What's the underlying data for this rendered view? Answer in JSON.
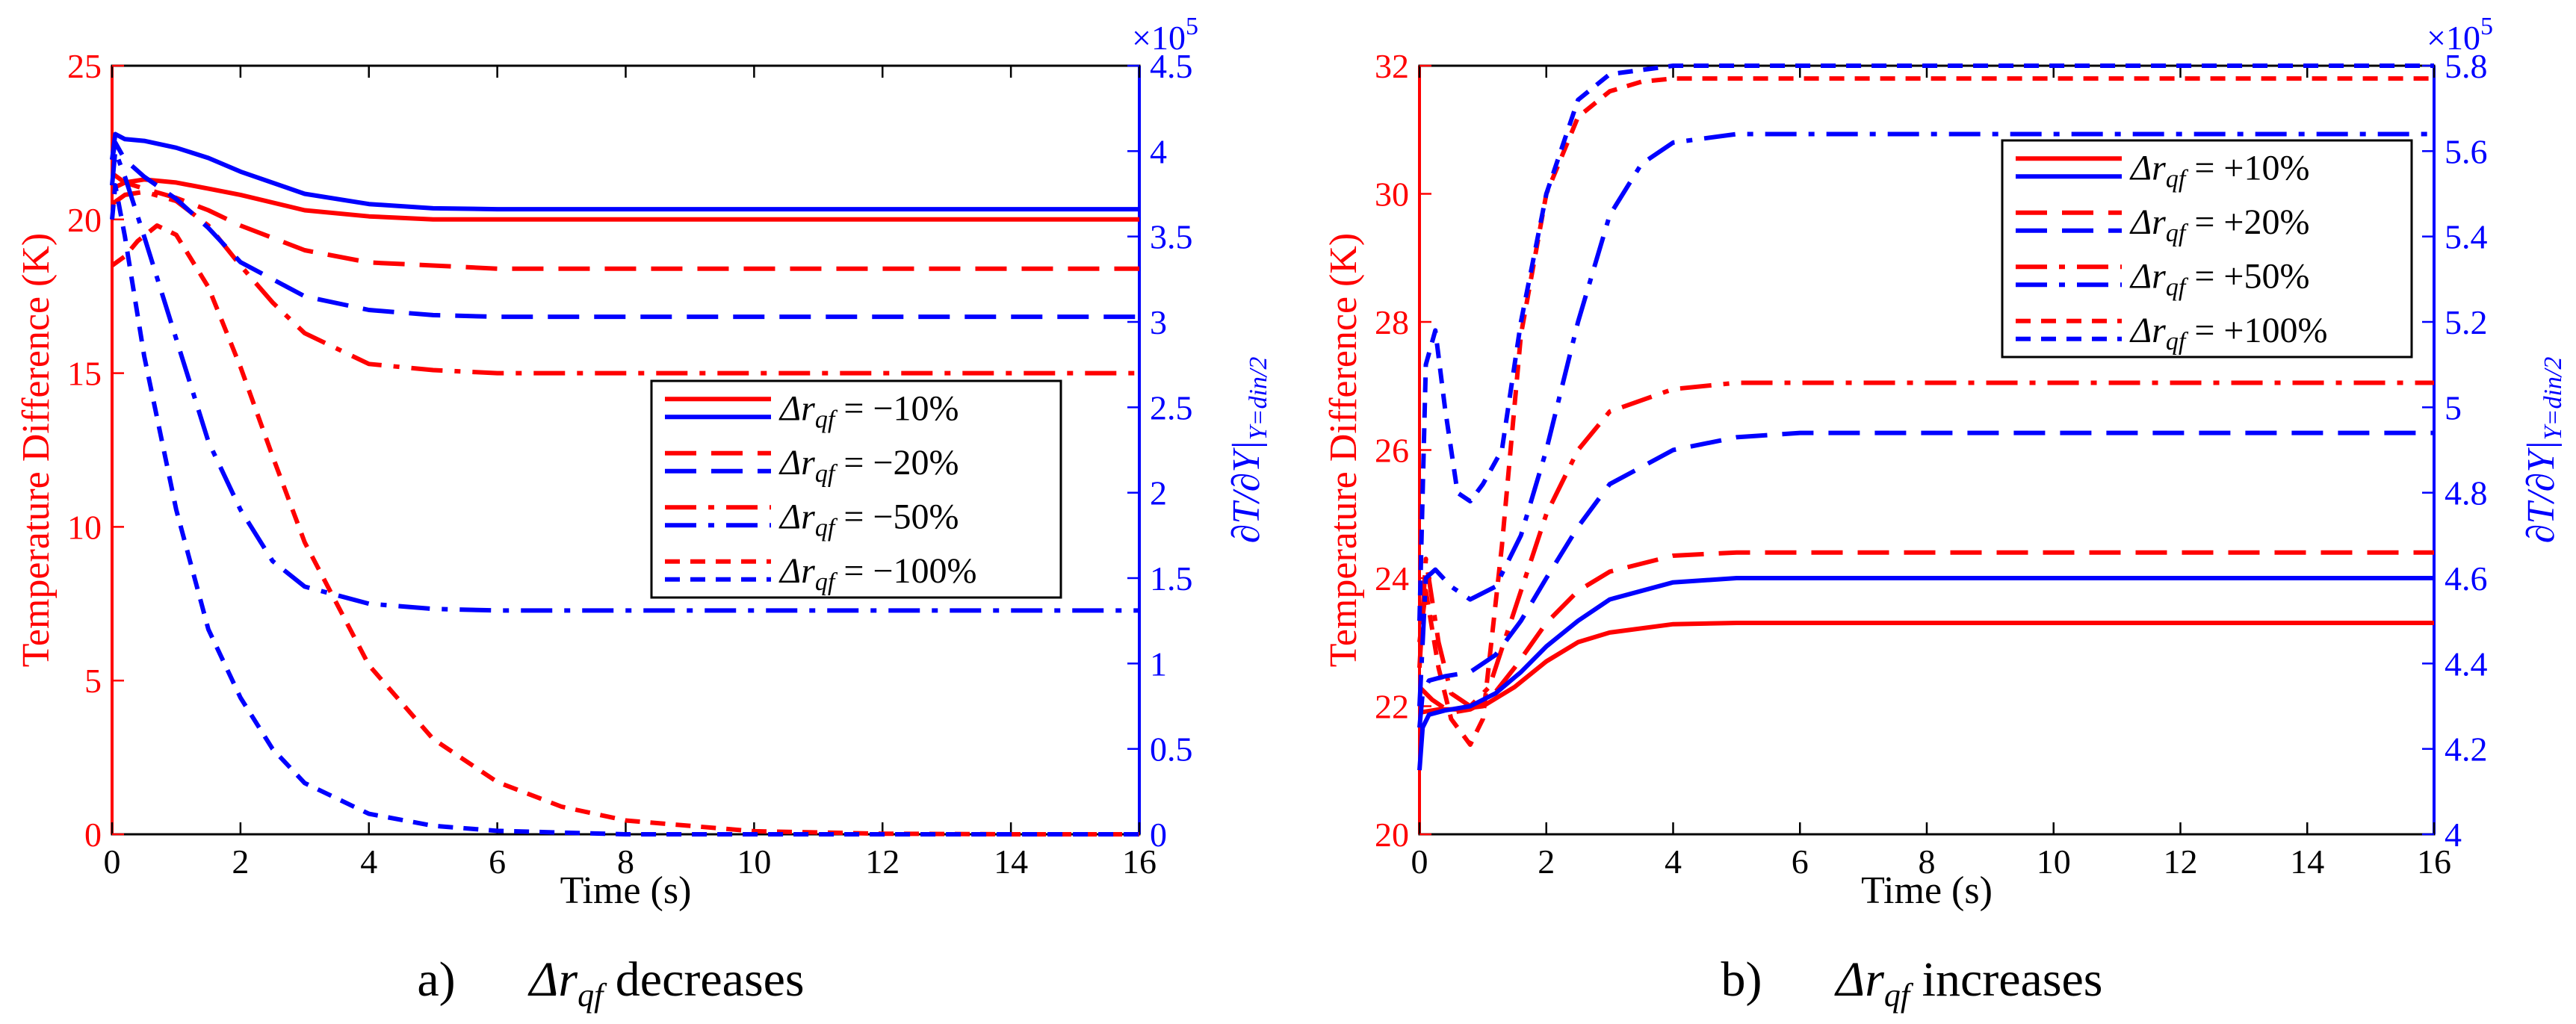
{
  "colors": {
    "red": "#ff0000",
    "blue": "#0000ff",
    "axis": "#000000"
  },
  "chart_data": [
    {
      "id": "a",
      "type": "line",
      "caption": {
        "letter": "a)",
        "prefix": "Δr",
        "subscript": "qf",
        "word": "decreases"
      },
      "xlabel": "Time (s)",
      "ylabel_left": "Temperature Difference (K)",
      "ylabel_right": "∂T/∂Y|",
      "ylabel_right_sub": "Y=din/2",
      "exponent": "×10",
      "exponent_power": "5",
      "xlim": [
        0,
        16
      ],
      "ylim_left": [
        0,
        25
      ],
      "ylim_right": [
        0,
        4.5
      ],
      "x_ticks": [
        "0",
        "2",
        "4",
        "6",
        "8",
        "10",
        "12",
        "14",
        "16"
      ],
      "y_left_ticks": [
        "0",
        "5",
        "10",
        "15",
        "20",
        "25"
      ],
      "y_right_ticks": [
        "0",
        "0.5",
        "1",
        "1.5",
        "2",
        "2.5",
        "3",
        "3.5",
        "4",
        "4.5"
      ],
      "legend": {
        "position": "center-right",
        "entries": [
          {
            "label": "Δr",
            "sub": "qf",
            "value": " = −10%",
            "dash": "solid"
          },
          {
            "label": "Δr",
            "sub": "qf",
            "value": " = −20%",
            "dash": "dashed"
          },
          {
            "label": "Δr",
            "sub": "qf",
            "value": " = −50%",
            "dash": "dashdot"
          },
          {
            "label": "Δr",
            "sub": "qf",
            "value": " = −100%",
            "dash": "shortdash"
          }
        ]
      },
      "series": [
        {
          "name": "ΔT −10%",
          "axis": "left",
          "color": "red",
          "dash": "solid",
          "x": [
            0,
            0.2,
            0.5,
            1,
            1.5,
            2,
            3,
            4,
            5,
            6,
            8,
            10,
            12,
            14,
            16
          ],
          "y": [
            21.0,
            21.2,
            21.3,
            21.2,
            21.0,
            20.8,
            20.3,
            20.1,
            20.0,
            20.0,
            20.0,
            20.0,
            20.0,
            20.0,
            20.0
          ]
        },
        {
          "name": "ΔT −20%",
          "axis": "left",
          "color": "red",
          "dash": "dashed",
          "x": [
            0,
            0.2,
            0.5,
            1,
            1.5,
            2,
            3,
            4,
            5,
            6,
            8,
            10,
            12,
            14,
            16
          ],
          "y": [
            21.5,
            21.2,
            21.0,
            20.7,
            20.3,
            19.8,
            19.0,
            18.6,
            18.5,
            18.4,
            18.4,
            18.4,
            18.4,
            18.4,
            18.4
          ]
        },
        {
          "name": "ΔT −50%",
          "axis": "left",
          "color": "red",
          "dash": "dashdot",
          "x": [
            0,
            0.2,
            0.5,
            1,
            1.5,
            2,
            2.5,
            3,
            4,
            5,
            6,
            8,
            10,
            12,
            14,
            16
          ],
          "y": [
            20.5,
            20.8,
            20.9,
            20.6,
            19.8,
            18.5,
            17.3,
            16.3,
            15.3,
            15.1,
            15.0,
            15.0,
            15.0,
            15.0,
            15.0,
            15.0
          ]
        },
        {
          "name": "ΔT −100%",
          "axis": "left",
          "color": "red",
          "dash": "shortdash",
          "x": [
            0,
            0.2,
            0.4,
            0.7,
            1,
            1.5,
            2,
            2.5,
            3,
            4,
            5,
            6,
            7,
            8,
            10,
            12,
            14,
            16
          ],
          "y": [
            18.5,
            18.8,
            19.3,
            19.8,
            19.5,
            17.8,
            15.2,
            12.3,
            9.5,
            5.5,
            3.1,
            1.7,
            0.9,
            0.45,
            0.1,
            0.02,
            0.0,
            0.0
          ]
        },
        {
          "name": "∂T/∂Y −10%",
          "axis": "right",
          "color": "blue",
          "dash": "solid",
          "x": [
            0,
            0.05,
            0.2,
            0.5,
            1,
            1.5,
            2,
            3,
            4,
            5,
            6,
            8,
            10,
            12,
            14,
            16
          ],
          "y": [
            3.95,
            4.1,
            4.07,
            4.06,
            4.02,
            3.96,
            3.88,
            3.75,
            3.69,
            3.665,
            3.66,
            3.66,
            3.66,
            3.66,
            3.66,
            3.66
          ]
        },
        {
          "name": "∂T/∂Y −20%",
          "axis": "right",
          "color": "blue",
          "dash": "dashed",
          "x": [
            0,
            0.05,
            0.2,
            0.5,
            1,
            1.5,
            2,
            3,
            4,
            5,
            6,
            8,
            10,
            12,
            14,
            16
          ],
          "y": [
            3.95,
            4.05,
            3.95,
            3.85,
            3.72,
            3.55,
            3.35,
            3.15,
            3.07,
            3.04,
            3.03,
            3.03,
            3.03,
            3.03,
            3.03,
            3.03
          ]
        },
        {
          "name": "∂T/∂Y −50%",
          "axis": "right",
          "color": "blue",
          "dash": "dashdot",
          "x": [
            0,
            0.05,
            0.2,
            0.5,
            1,
            1.5,
            2,
            2.5,
            3,
            4,
            5,
            6,
            8,
            10,
            12,
            14,
            16
          ],
          "y": [
            3.8,
            4.0,
            3.85,
            3.5,
            2.9,
            2.3,
            1.9,
            1.6,
            1.45,
            1.35,
            1.32,
            1.31,
            1.31,
            1.31,
            1.31,
            1.31,
            1.31
          ]
        },
        {
          "name": "∂T/∂Y −100%",
          "axis": "right",
          "color": "blue",
          "dash": "shortdash",
          "x": [
            0,
            0.05,
            0.2,
            0.5,
            1,
            1.5,
            2,
            2.5,
            3,
            4,
            5,
            6,
            7,
            8,
            10,
            12,
            14,
            16
          ],
          "y": [
            3.6,
            3.8,
            3.5,
            2.8,
            1.9,
            1.2,
            0.8,
            0.5,
            0.3,
            0.12,
            0.05,
            0.02,
            0.01,
            0.0,
            0.0,
            0.0,
            0.0,
            0.0
          ]
        }
      ]
    },
    {
      "id": "b",
      "type": "line",
      "caption": {
        "letter": "b)",
        "prefix": "Δr",
        "subscript": "qf",
        "word": "increases"
      },
      "xlabel": "Time (s)",
      "ylabel_left": "Temperature Difference (K)",
      "ylabel_right": "∂T/∂Y|",
      "ylabel_right_sub": "Y=din/2",
      "exponent": "×10",
      "exponent_power": "5",
      "xlim": [
        0,
        16
      ],
      "ylim_left": [
        20,
        32
      ],
      "ylim_right": [
        4,
        5.8
      ],
      "x_ticks": [
        "0",
        "2",
        "4",
        "6",
        "8",
        "10",
        "12",
        "14",
        "16"
      ],
      "y_left_ticks": [
        "20",
        "22",
        "24",
        "26",
        "28",
        "30",
        "32"
      ],
      "y_right_ticks": [
        "4",
        "4.2",
        "4.4",
        "4.6",
        "4.8",
        "5",
        "5.2",
        "5.4",
        "5.6",
        "5.8"
      ],
      "legend": {
        "position": "top-right",
        "entries": [
          {
            "label": "Δr",
            "sub": "qf",
            "value": " = +10%",
            "dash": "solid"
          },
          {
            "label": "Δr",
            "sub": "qf",
            "value": " = +20%",
            "dash": "dashed"
          },
          {
            "label": "Δr",
            "sub": "qf",
            "value": " = +50%",
            "dash": "dashdot"
          },
          {
            "label": "Δr",
            "sub": "qf",
            "value": " = +100%",
            "dash": "shortdash"
          }
        ]
      },
      "series": [
        {
          "name": "ΔT +10%",
          "axis": "left",
          "color": "red",
          "dash": "solid",
          "x": [
            0,
            0.3,
            0.6,
            1,
            1.5,
            2,
            2.5,
            3,
            4,
            5,
            6,
            8,
            10,
            12,
            14,
            16
          ],
          "y": [
            21.9,
            21.95,
            21.95,
            22.0,
            22.3,
            22.7,
            23.0,
            23.15,
            23.28,
            23.3,
            23.3,
            23.3,
            23.3,
            23.3,
            23.3,
            23.3
          ]
        },
        {
          "name": "ΔT +20%",
          "axis": "left",
          "color": "red",
          "dash": "dashed",
          "x": [
            0,
            0.2,
            0.5,
            0.8,
            1.1,
            1.5,
            2,
            2.5,
            3,
            4,
            5,
            6,
            8,
            10,
            12,
            14,
            16
          ],
          "y": [
            22.3,
            22.1,
            21.9,
            21.95,
            22.1,
            22.6,
            23.3,
            23.8,
            24.1,
            24.35,
            24.4,
            24.4,
            24.4,
            24.4,
            24.4,
            24.4,
            24.4
          ]
        },
        {
          "name": "ΔT +50%",
          "axis": "left",
          "color": "red",
          "dash": "dashdot",
          "x": [
            0,
            0.1,
            0.3,
            0.5,
            0.8,
            1.1,
            1.5,
            2,
            2.5,
            3,
            4,
            5,
            6,
            8,
            10,
            12,
            14,
            16
          ],
          "y": [
            22.6,
            24.3,
            23.0,
            22.2,
            22.0,
            22.3,
            23.5,
            25.0,
            26.0,
            26.6,
            26.95,
            27.05,
            27.05,
            27.05,
            27.05,
            27.05,
            27.05,
            27.05
          ]
        },
        {
          "name": "ΔT +100%",
          "axis": "left",
          "color": "red",
          "dash": "shortdash",
          "x": [
            0,
            0.1,
            0.3,
            0.5,
            0.8,
            1.0,
            1.3,
            1.6,
            2,
            2.5,
            3,
            3.5,
            4,
            5,
            6,
            8,
            10,
            12,
            14,
            16
          ],
          "y": [
            23.0,
            23.8,
            22.6,
            21.8,
            21.4,
            21.8,
            24.5,
            27.8,
            30.0,
            31.2,
            31.6,
            31.75,
            31.8,
            31.8,
            31.8,
            31.8,
            31.8,
            31.8,
            31.8,
            31.8
          ]
        },
        {
          "name": "∂T/∂Y +10%",
          "axis": "right",
          "color": "blue",
          "dash": "solid",
          "x": [
            0,
            0.05,
            0.15,
            0.4,
            0.8,
            1.2,
            1.6,
            2,
            2.5,
            3,
            4,
            5,
            6,
            8,
            10,
            12,
            14,
            16
          ],
          "y": [
            4.15,
            4.25,
            4.28,
            4.29,
            4.3,
            4.33,
            4.38,
            4.44,
            4.5,
            4.55,
            4.59,
            4.6,
            4.6,
            4.6,
            4.6,
            4.6,
            4.6,
            4.6
          ]
        },
        {
          "name": "∂T/∂Y +20%",
          "axis": "right",
          "color": "blue",
          "dash": "dashed",
          "x": [
            0,
            0.05,
            0.15,
            0.4,
            0.8,
            1.2,
            1.6,
            2,
            2.5,
            3,
            4,
            5,
            6,
            8,
            10,
            12,
            14,
            16
          ],
          "y": [
            4.25,
            4.33,
            4.36,
            4.37,
            4.38,
            4.42,
            4.5,
            4.6,
            4.72,
            4.82,
            4.9,
            4.93,
            4.94,
            4.94,
            4.94,
            4.94,
            4.94,
            4.94
          ]
        },
        {
          "name": "∂T/∂Y +50%",
          "axis": "right",
          "color": "blue",
          "dash": "dashdot",
          "x": [
            0,
            0.1,
            0.25,
            0.5,
            0.8,
            1.2,
            1.6,
            2,
            2.5,
            3,
            3.5,
            4,
            5,
            6,
            8,
            10,
            12,
            14,
            16
          ],
          "y": [
            4.3,
            4.6,
            4.62,
            4.58,
            4.55,
            4.58,
            4.7,
            4.9,
            5.2,
            5.45,
            5.57,
            5.62,
            5.64,
            5.64,
            5.64,
            5.64,
            5.64,
            5.64,
            5.64
          ]
        },
        {
          "name": "∂T/∂Y +100%",
          "axis": "right",
          "color": "blue",
          "dash": "shortdash",
          "x": [
            0,
            0.1,
            0.25,
            0.4,
            0.6,
            0.8,
            1.0,
            1.3,
            1.6,
            2,
            2.5,
            3,
            4,
            5,
            6,
            8,
            10,
            12,
            14,
            16
          ],
          "y": [
            4.5,
            5.1,
            5.18,
            5.0,
            4.8,
            4.78,
            4.82,
            4.9,
            5.2,
            5.5,
            5.72,
            5.78,
            5.8,
            5.8,
            5.8,
            5.8,
            5.8,
            5.8,
            5.8,
            5.8
          ]
        }
      ]
    }
  ]
}
